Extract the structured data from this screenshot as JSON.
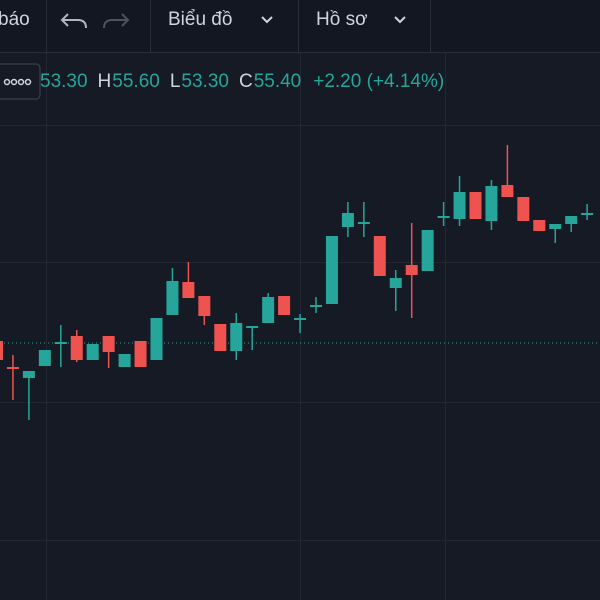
{
  "toolbar": {
    "items": [
      "báo",
      "Biểu đồ",
      "Hồ sơ"
    ]
  },
  "legend": {
    "parts": [
      {
        "label": null,
        "value": "53.30"
      },
      {
        "label": "H",
        "value": "55.60"
      },
      {
        "label": "L",
        "value": "53.30"
      },
      {
        "label": "C",
        "value": "55.40"
      }
    ],
    "change": "+2.20 (+4.14%)"
  },
  "chart_data": {
    "type": "candlestick",
    "up_color": "#26a69a",
    "down_color": "#ef5350",
    "ylim": [
      40,
      65
    ],
    "price_line": 52.85,
    "open": [
      52.95,
      51.65,
      51.1,
      51.7,
      52.8,
      53.2,
      52.0,
      53.2,
      51.65,
      52.95,
      52.0,
      54.25,
      55.9,
      55.2,
      53.8,
      52.45,
      53.6,
      53.85,
      55.2,
      54.0,
      54.65,
      54.8,
      58.65,
      58.8,
      58.2,
      55.6,
      56.75,
      56.45,
      59.1,
      59.05,
      60.4,
      58.95,
      60.75,
      60.15,
      59.0,
      58.55,
      58.8,
      59.25
    ],
    "high": [
      52.95,
      52.25,
      51.45,
      52.5,
      53.75,
      53.5,
      52.8,
      53.2,
      52.3,
      52.95,
      54.1,
      56.6,
      56.9,
      55.2,
      53.8,
      54.35,
      53.7,
      55.35,
      55.2,
      54.3,
      55.15,
      58.2,
      59.9,
      59.9,
      58.2,
      56.5,
      58.85,
      58.5,
      59.9,
      61.2,
      60.4,
      61.0,
      62.75,
      60.15,
      59.0,
      58.8,
      59.2,
      59.8
    ],
    "low": [
      51.75,
      50.0,
      49.0,
      51.7,
      51.65,
      51.9,
      52.0,
      51.6,
      51.65,
      51.65,
      52.0,
      54.25,
      55.1,
      53.75,
      52.45,
      52.0,
      52.5,
      53.85,
      54.25,
      53.35,
      54.35,
      54.8,
      58.15,
      58.15,
      56.2,
      54.45,
      54.1,
      56.45,
      58.7,
      58.7,
      59.05,
      58.5,
      60.15,
      58.95,
      58.45,
      57.85,
      58.4,
      59.0
    ],
    "close": [
      52.0,
      51.55,
      51.45,
      52.5,
      52.9,
      52.0,
      52.8,
      52.4,
      52.3,
      51.65,
      54.1,
      55.95,
      55.1,
      54.2,
      52.45,
      53.85,
      53.7,
      55.15,
      54.25,
      54.1,
      54.75,
      58.2,
      59.35,
      58.9,
      56.2,
      56.1,
      56.25,
      58.5,
      59.2,
      60.4,
      59.05,
      60.7,
      60.15,
      58.95,
      58.45,
      58.8,
      59.2,
      59.35
    ]
  }
}
